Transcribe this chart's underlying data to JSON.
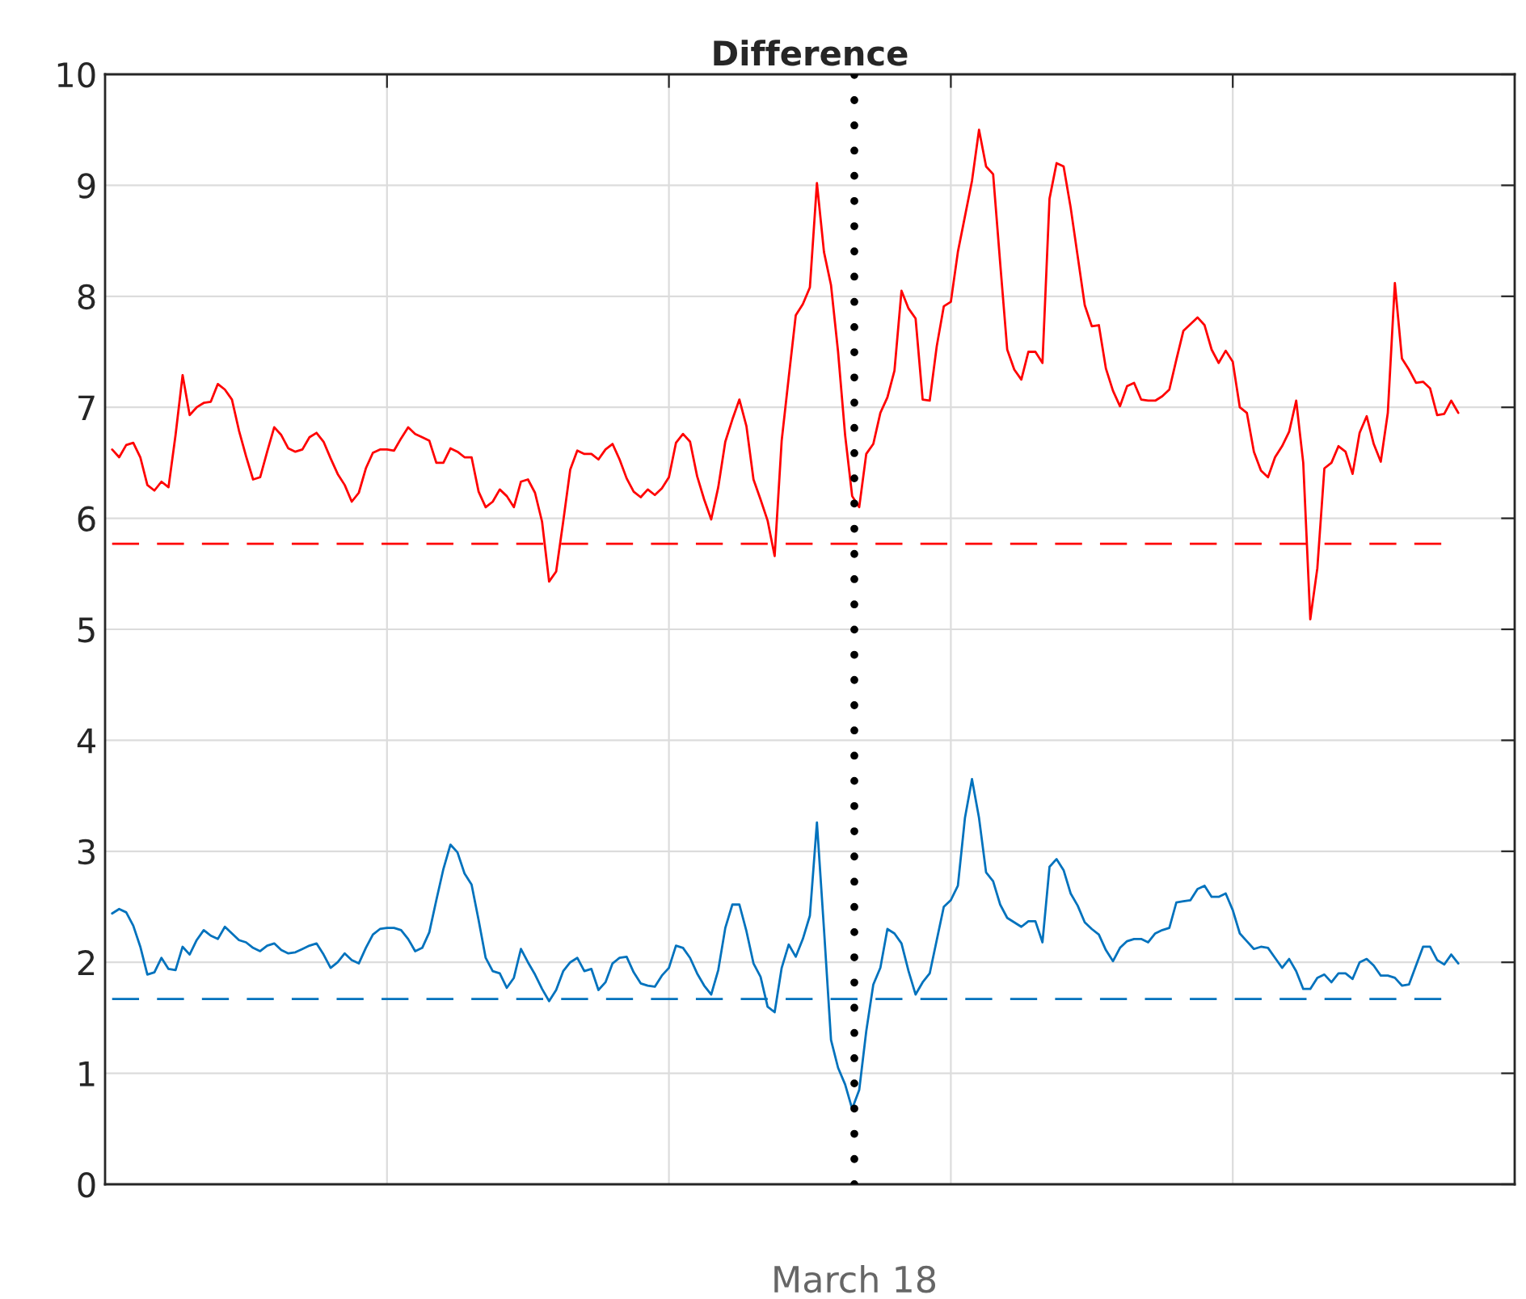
{
  "chart_data": {
    "type": "line",
    "title": "Difference",
    "categories": [
      null,
      null,
      null,
      null,
      null,
      null,
      null,
      null,
      null,
      null,
      null,
      null,
      null,
      null,
      null,
      null,
      null,
      null,
      null,
      null,
      null,
      null,
      null,
      null,
      null,
      null,
      null,
      null,
      null,
      null,
      null,
      null,
      null,
      null,
      null,
      null,
      null,
      null,
      null,
      null,
      null,
      null,
      null,
      null,
      null,
      null,
      null,
      null,
      null,
      null,
      null,
      null,
      null,
      null,
      null,
      null,
      null,
      null,
      null,
      null,
      null,
      null,
      null,
      null,
      null,
      null,
      null,
      null,
      null,
      null,
      null,
      null,
      null,
      null,
      null,
      null,
      null,
      null,
      null,
      null,
      null,
      null,
      null,
      null,
      null,
      null,
      null,
      null,
      null,
      null,
      null,
      null,
      null,
      null,
      null,
      null,
      null,
      null,
      null,
      null,
      null,
      null,
      null,
      null,
      null,
      null,
      null,
      null,
      null,
      null,
      null,
      null,
      null,
      null,
      null,
      null,
      null,
      null,
      null,
      null,
      null,
      null,
      null,
      null,
      null,
      null,
      null,
      null,
      null,
      null,
      null,
      null,
      null,
      null,
      null,
      null,
      null,
      null,
      null,
      null,
      null,
      null,
      null,
      null,
      null,
      null,
      null,
      null,
      null,
      null,
      null,
      null,
      null,
      null,
      null,
      null,
      null,
      null,
      null,
      null,
      null,
      null,
      null,
      null,
      null,
      null,
      null,
      null,
      null,
      null,
      null,
      null,
      null,
      null,
      null,
      null,
      null,
      null,
      null,
      null,
      null,
      null,
      null,
      null,
      null,
      null,
      null,
      null,
      null,
      null,
      null,
      null,
      null,
      null,
      null,
      null,
      null,
      null,
      null,
      null,
      null
    ],
    "ylim": [
      0,
      10
    ],
    "yticks": [
      0,
      1,
      2,
      3,
      4,
      5,
      6,
      7,
      8,
      9,
      10
    ],
    "grid": true,
    "tick_labels": "y",
    "series": [
      {
        "color": "#ff0000",
        "values": [
          null,
          6.62,
          6.55,
          6.66,
          6.68,
          6.55,
          6.3,
          6.25,
          6.33,
          6.28,
          6.75,
          7.29,
          6.93,
          7.0,
          7.04,
          7.05,
          7.21,
          7.16,
          7.07,
          6.79,
          6.56,
          6.35,
          6.37,
          6.6,
          6.82,
          6.75,
          6.63,
          6.6,
          6.62,
          6.73,
          6.77,
          6.69,
          6.54,
          6.4,
          6.3,
          6.15,
          6.23,
          6.45,
          6.59,
          6.62,
          6.62,
          6.61,
          6.72,
          6.82,
          6.76,
          6.73,
          6.7,
          6.5,
          6.5,
          6.63,
          6.6,
          6.55,
          6.55,
          6.24,
          6.1,
          6.15,
          6.26,
          6.2,
          6.1,
          6.33,
          6.35,
          6.23,
          5.97,
          5.43,
          5.52,
          5.97,
          6.44,
          6.61,
          6.58,
          6.58,
          6.53,
          6.62,
          6.67,
          6.53,
          6.36,
          6.24,
          6.19,
          6.26,
          6.21,
          6.27,
          6.37,
          6.68,
          6.76,
          6.69,
          6.38,
          6.17,
          5.99,
          6.28,
          6.69,
          6.89,
          7.07,
          6.83,
          6.35,
          6.17,
          5.98,
          5.66,
          6.7,
          7.27,
          7.83,
          7.93,
          8.08,
          9.02,
          8.4,
          8.1,
          7.5,
          6.75,
          6.2,
          6.1,
          6.58,
          6.67,
          6.95,
          7.09,
          7.33,
          8.05,
          7.89,
          7.8,
          7.07,
          7.06,
          7.55,
          7.91,
          7.95,
          8.4,
          8.72,
          9.04,
          9.5,
          9.17,
          9.1,
          8.3,
          7.52,
          7.34,
          7.25,
          7.5,
          7.5,
          7.4,
          8.88,
          9.2,
          9.17,
          8.8,
          8.36,
          7.92,
          7.73,
          7.74,
          7.35,
          7.15,
          7.01,
          7.19,
          7.22,
          7.07,
          7.06,
          7.06,
          7.1,
          7.16,
          7.43,
          7.69,
          7.75,
          7.81,
          7.74,
          7.52,
          7.4,
          7.51,
          7.41,
          7.0,
          6.95,
          6.6,
          6.43,
          6.37,
          6.55,
          6.65,
          6.78,
          7.06,
          6.5,
          5.09,
          5.55,
          6.45,
          6.5,
          6.65,
          6.6,
          6.4,
          6.77,
          6.92,
          6.67,
          6.51,
          6.95,
          8.12,
          7.44,
          7.34,
          7.22,
          7.23,
          7.17,
          6.93,
          6.94,
          7.06,
          6.95,
          null,
          null,
          null,
          null,
          null,
          null,
          null,
          null
        ]
      },
      {
        "color": "#0072bd",
        "values": [
          null,
          2.44,
          2.48,
          2.45,
          2.33,
          2.14,
          1.89,
          1.91,
          2.04,
          1.94,
          1.93,
          2.14,
          2.07,
          2.2,
          2.29,
          2.24,
          2.21,
          2.32,
          2.26,
          2.2,
          2.18,
          2.13,
          2.1,
          2.15,
          2.17,
          2.11,
          2.08,
          2.09,
          2.12,
          2.15,
          2.17,
          2.07,
          1.95,
          2.0,
          2.08,
          2.02,
          1.99,
          2.13,
          2.25,
          2.3,
          2.31,
          2.31,
          2.29,
          2.21,
          2.1,
          2.13,
          2.27,
          2.56,
          2.84,
          3.06,
          2.99,
          2.8,
          2.7,
          2.38,
          2.04,
          1.92,
          1.9,
          1.77,
          1.86,
          2.12,
          2.0,
          1.89,
          1.76,
          1.65,
          1.75,
          1.92,
          2.0,
          2.04,
          1.92,
          1.94,
          1.75,
          1.82,
          1.99,
          2.04,
          2.05,
          1.91,
          1.81,
          1.79,
          1.78,
          1.88,
          1.95,
          2.15,
          2.13,
          2.04,
          1.9,
          1.79,
          1.71,
          1.93,
          2.31,
          2.52,
          2.52,
          2.28,
          1.99,
          1.87,
          1.6,
          1.55,
          1.95,
          2.16,
          2.05,
          2.21,
          2.42,
          3.26,
          2.3,
          1.3,
          1.05,
          0.9,
          0.68,
          0.85,
          1.38,
          1.8,
          1.95,
          2.3,
          2.26,
          2.17,
          1.92,
          1.71,
          1.82,
          1.9,
          2.2,
          2.5,
          2.56,
          2.69,
          3.3,
          3.65,
          3.3,
          2.81,
          2.73,
          2.52,
          2.4,
          2.36,
          2.32,
          2.37,
          2.37,
          2.18,
          2.86,
          2.93,
          2.83,
          2.62,
          2.51,
          2.36,
          2.3,
          2.25,
          2.11,
          2.01,
          2.13,
          2.19,
          2.21,
          2.21,
          2.18,
          2.26,
          2.29,
          2.31,
          2.54,
          2.55,
          2.56,
          2.66,
          2.69,
          2.59,
          2.59,
          2.62,
          2.47,
          2.26,
          2.19,
          2.12,
          2.14,
          2.13,
          2.04,
          1.95,
          2.03,
          1.92,
          1.76,
          1.76,
          1.86,
          1.89,
          1.82,
          1.9,
          1.9,
          1.85,
          2.0,
          2.03,
          1.97,
          1.88,
          1.88,
          1.86,
          1.79,
          1.8,
          1.97,
          2.14,
          2.14,
          2.02,
          1.98,
          2.07,
          1.99,
          null,
          null,
          null,
          null,
          null,
          null,
          null,
          null
        ]
      }
    ],
    "ref_lines": [
      {
        "axis": "y",
        "value": 5.77,
        "color": "#ff0000",
        "line_style": "dashed"
      },
      {
        "axis": "y",
        "value": 1.67,
        "color": "#0072bd",
        "line_style": "dashed"
      }
    ],
    "annotations": [
      "March 18"
    ]
  }
}
